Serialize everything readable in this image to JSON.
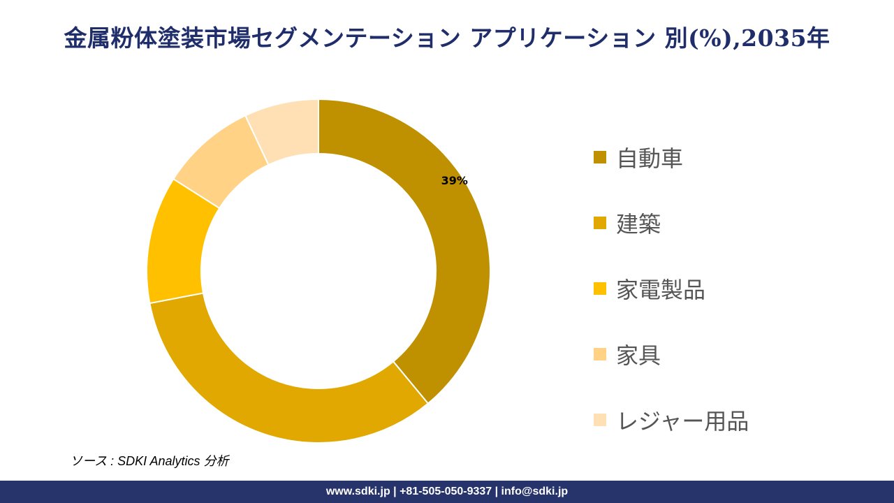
{
  "title": "金属粉体塗装市場セグメンテーション アプリケーション 別(%),2035年",
  "source": "ソース : SDKI Analytics 分析",
  "footer": "www.sdki.jp | +81-505-050-9337 | info@sdki.jp",
  "chart_data": {
    "type": "pie",
    "variant": "donut",
    "title": "金属粉体塗装市場セグメンテーション アプリケーション 別(%),2035年",
    "legend_position": "right",
    "categories": [
      "自動車",
      "建築",
      "家電製品",
      "家具",
      "レジャー用品"
    ],
    "values": [
      39,
      33,
      12,
      9,
      7
    ],
    "colors": [
      "#BF9000",
      "#E0A800",
      "#FFC000",
      "#FFD285",
      "#FFE0B5"
    ],
    "data_labels": [
      "39%",
      "",
      "",
      "",
      ""
    ]
  }
}
